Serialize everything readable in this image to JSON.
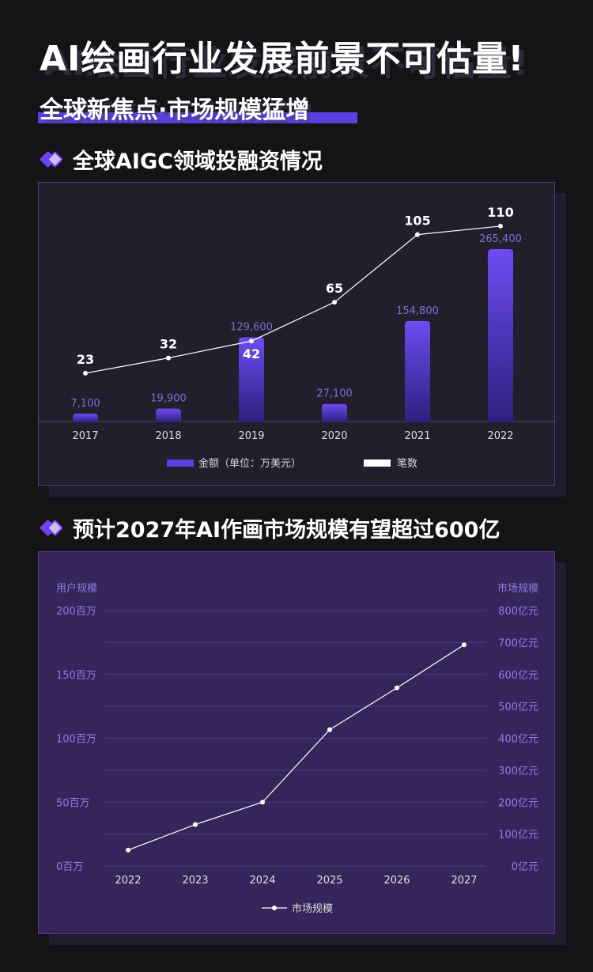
{
  "header": {
    "title": "AI绘画行业发展前景不可估量!",
    "subtitle": "全球新焦点·市场规模猛增"
  },
  "section1": {
    "title": "全球AIGC领域投融资情况"
  },
  "section2": {
    "title": "预计2027年AI作画市场规模有望超过600亿"
  },
  "colors": {
    "accent": "#5b3fe0",
    "bar_top": "#6c4cf2",
    "bar_bottom": "#2d1f7d",
    "axis_text_purple": "#8f7de8"
  },
  "chart_data": [
    {
      "type": "bar",
      "categories": [
        "2017",
        "2018",
        "2019",
        "2020",
        "2021",
        "2022"
      ],
      "series": [
        {
          "name": "金额（单位：万美元）",
          "type": "bar",
          "values": [
            7100,
            19900,
            129600,
            27100,
            154800,
            265400
          ],
          "labels": [
            "7,100",
            "19,900",
            "129,600",
            "27,100",
            "154,800",
            "265,400"
          ]
        },
        {
          "name": "笔数",
          "type": "line",
          "values": [
            23,
            32,
            42,
            65,
            105,
            110
          ]
        }
      ],
      "legend": "bottom-center",
      "grid": false
    },
    {
      "type": "line",
      "categories": [
        "2022",
        "2023",
        "2024",
        "2025",
        "2026",
        "2027"
      ],
      "series": [
        {
          "name": "市场规模",
          "values": [
            50,
            130,
            200,
            427,
            558,
            693
          ]
        }
      ],
      "left_axis": {
        "label": "用户规模",
        "ticks": [
          "0百万",
          "50百万",
          "100百万",
          "150百万",
          "200百万"
        ]
      },
      "right_axis": {
        "label": "市场规模",
        "ticks": [
          "0亿元",
          "100亿元",
          "200亿元",
          "300亿元",
          "400亿元",
          "500亿元",
          "600亿元",
          "700亿元",
          "800亿元"
        ],
        "ylim": [
          0,
          800
        ]
      },
      "legend": "bottom-center",
      "grid": true
    }
  ]
}
